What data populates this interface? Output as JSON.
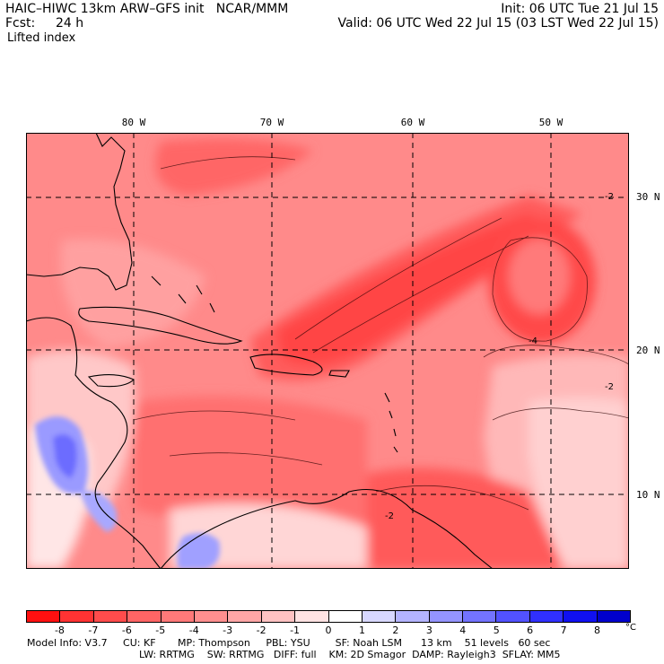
{
  "header": {
    "model_title": "HAIC–HIWC 13km ARW–GFS init   NCAR/MMM",
    "init": "Init: 06 UTC Tue 21 Jul 15",
    "fcst_label": "Fcst:",
    "fcst_value": "24 h",
    "valid": "Valid: 06 UTC Wed 22 Jul 15 (03 LST Wed 22 Jul 15)",
    "field": "Lifted index"
  },
  "map": {
    "longitude_labels": [
      "80 W",
      "70 W",
      "60 W",
      "50 W"
    ],
    "latitude_labels": [
      "30 N",
      "20 N",
      "10 N"
    ],
    "contour_labels": [
      "-2",
      "-4",
      "-2",
      "-2"
    ]
  },
  "colorbar": {
    "ticks": [
      "-8",
      "-7",
      "-6",
      "-5",
      "-4",
      "-3",
      "-2",
      "-1",
      "0",
      "1",
      "2",
      "3",
      "4",
      "5",
      "6",
      "7",
      "8"
    ],
    "unit": "°C",
    "colors": [
      "#ff1010",
      "#ff3333",
      "#ff4c4c",
      "#ff6565",
      "#ff7979",
      "#ff8f8f",
      "#ffa6a6",
      "#ffc2c2",
      "#ffe2e2",
      "#ffffff",
      "#d8d8ff",
      "#b4b4ff",
      "#9494ff",
      "#7373ff",
      "#5252ff",
      "#3030ff",
      "#1010f0",
      "#0000cc"
    ]
  },
  "model_info": {
    "line1": "Model Info: V3.7     CU: KF       MP: Thompson     PBL: YSU        SF: Noah LSM      13 km    51 levels   60 sec",
    "line2": "LW: RRTMG    SW: RRTMG   DIFF: full    KM: 2D Smagor  DAMP: Rayleigh3  SFLAY: MM5"
  }
}
